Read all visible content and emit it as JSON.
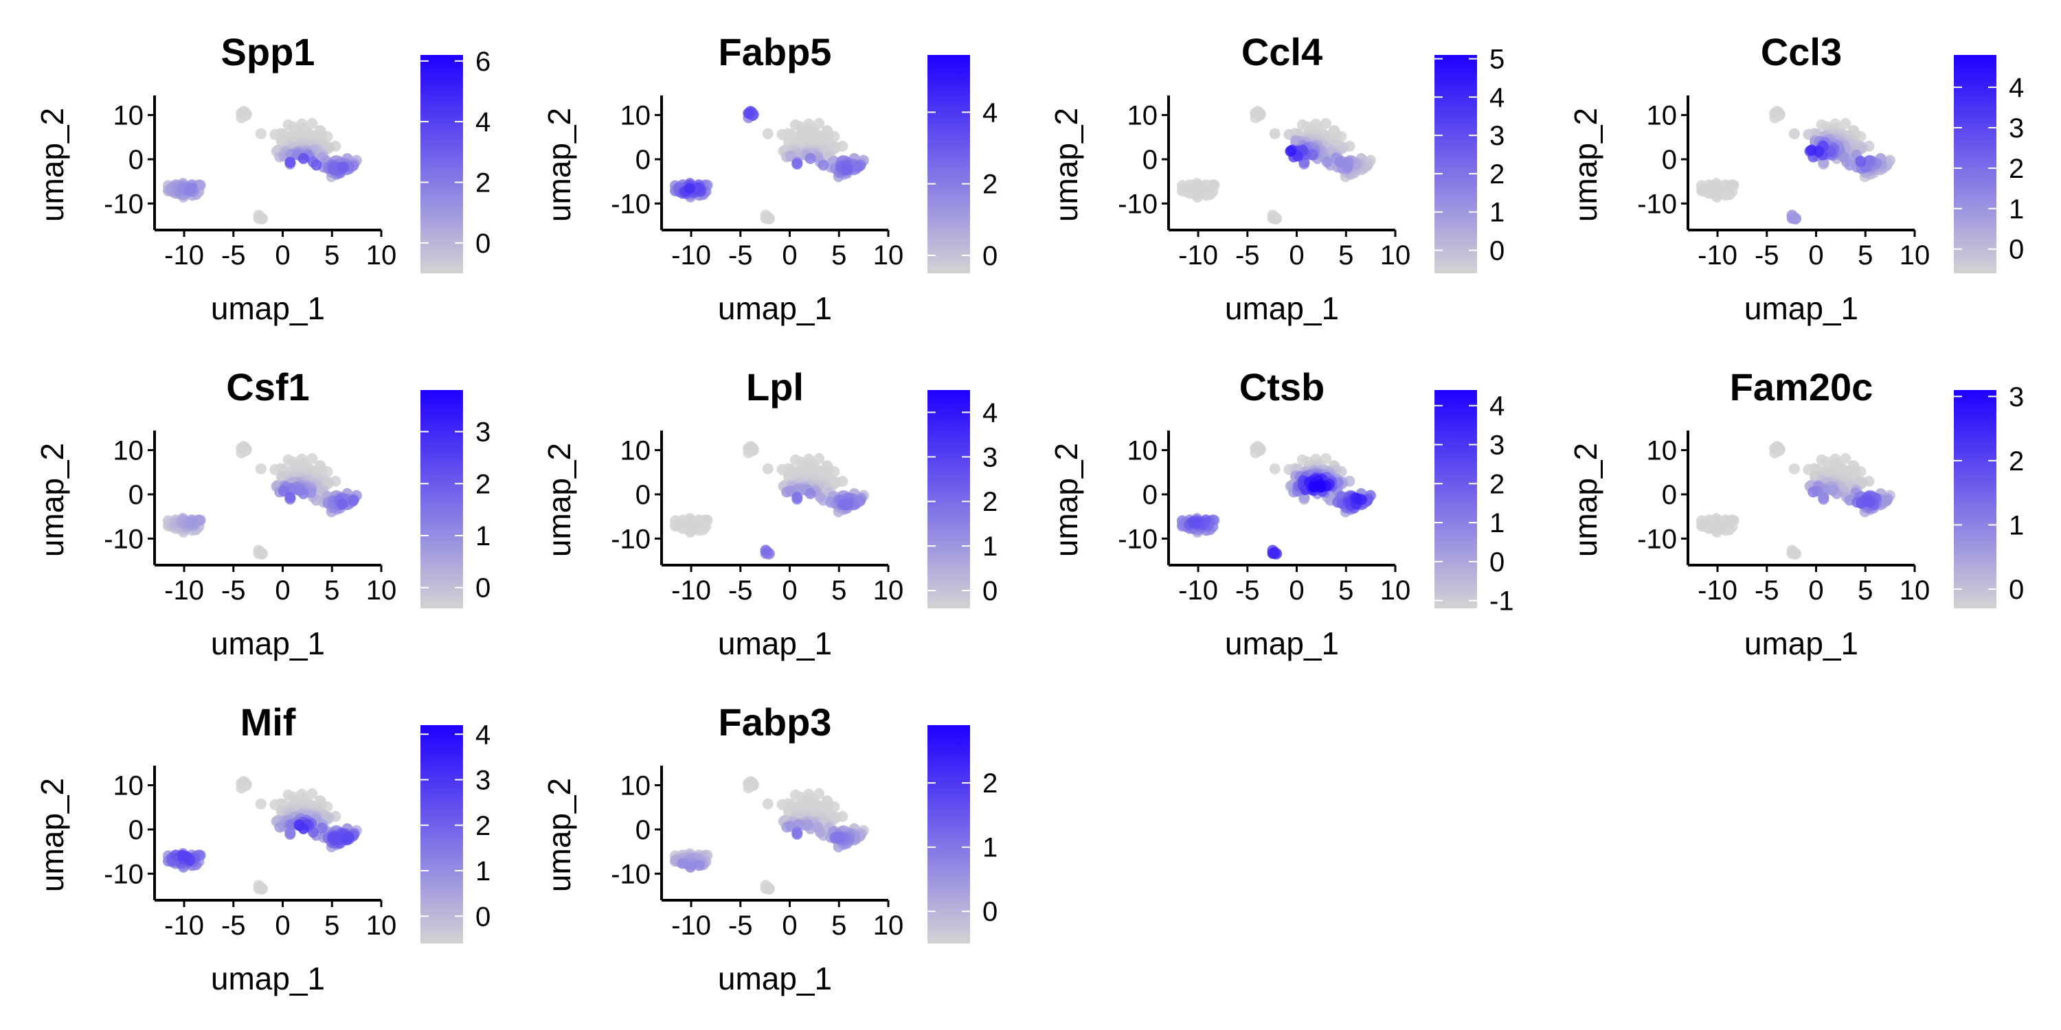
{
  "colors": {
    "low": "#d3d3d3",
    "high": "#1e00ff"
  },
  "chart_data": {
    "type": "scatter",
    "title": "",
    "xlabel": "umap_1",
    "ylabel": "umap_2",
    "xlim": [
      -13,
      10
    ],
    "ylim": [
      -16,
      13.5
    ],
    "x_ticks": [
      -10,
      -5,
      0,
      5,
      10
    ],
    "x_tick_labels": [
      "-10",
      "-5",
      "0",
      "5",
      "10"
    ],
    "y_ticks": [
      -10,
      0,
      10
    ],
    "y_tick_labels": [
      "-10",
      "0",
      "10"
    ],
    "clusters": [
      {
        "cx": -9.8,
        "cy": -6.8,
        "sx": 1.6,
        "sy": 1.2,
        "n": 60
      },
      {
        "cx": -4.0,
        "cy": 10.0,
        "sx": 0.35,
        "sy": 0.9,
        "n": 10
      },
      {
        "cx": -2.3,
        "cy": -13.2,
        "sx": 0.4,
        "sy": 0.4,
        "n": 6
      },
      {
        "cx": 2.0,
        "cy": 3.5,
        "sx": 2.2,
        "sy": 3.6,
        "n": 160
      },
      {
        "cx": 5.8,
        "cy": -1.5,
        "sx": 1.5,
        "sy": 1.3,
        "n": 55
      }
    ],
    "panels": [
      {
        "gene": "Spp1",
        "color_min": -1,
        "color_max": 6.2,
        "colorbar_ticks": [
          0,
          2,
          4,
          6
        ],
        "hot": [
          [
            2,
            -1,
            0.75
          ],
          [
            6,
            -2,
            0.5
          ],
          [
            -9.8,
            -6.8,
            0.35
          ]
        ]
      },
      {
        "gene": "Fabp5",
        "color_min": -0.5,
        "color_max": 5.6,
        "colorbar_ticks": [
          0,
          2,
          4
        ],
        "hot": [
          [
            1.5,
            -2,
            0.8
          ],
          [
            -10,
            -6.5,
            0.7
          ],
          [
            6,
            -2,
            0.5
          ],
          [
            -4,
            10.5,
            0.6
          ]
        ]
      },
      {
        "gene": "Ccl4",
        "color_min": -0.6,
        "color_max": 5.1,
        "colorbar_ticks": [
          0,
          1,
          2,
          3,
          4,
          5
        ],
        "hot": [
          [
            -0.5,
            1,
            0.95
          ],
          [
            4,
            -1,
            0.4
          ]
        ]
      },
      {
        "gene": "Ccl3",
        "color_min": -0.6,
        "color_max": 4.8,
        "colorbar_ticks": [
          0,
          1,
          2,
          3,
          4
        ],
        "hot": [
          [
            0,
            2,
            0.75
          ],
          [
            4.5,
            -0.5,
            0.5
          ],
          [
            -2,
            -13,
            0.3
          ]
        ]
      },
      {
        "gene": "Csf1",
        "color_min": -0.4,
        "color_max": 3.8,
        "colorbar_ticks": [
          0,
          1,
          2,
          3
        ],
        "hot": [
          [
            1,
            0,
            0.55
          ],
          [
            6.5,
            -2,
            0.5
          ],
          [
            -9,
            -6,
            0.25
          ]
        ]
      },
      {
        "gene": "Lpl",
        "color_min": -0.4,
        "color_max": 4.5,
        "colorbar_ticks": [
          0,
          1,
          2,
          3,
          4
        ],
        "hot": [
          [
            1,
            -1,
            0.5
          ],
          [
            6,
            -2,
            0.45
          ],
          [
            -2.5,
            -13.2,
            0.5
          ]
        ]
      },
      {
        "gene": "Ctsb",
        "color_min": -1.2,
        "color_max": 4.4,
        "colorbar_ticks": [
          -1,
          0,
          1,
          2,
          3,
          4
        ],
        "hot": [
          [
            2,
            2,
            0.95
          ],
          [
            6,
            -1.5,
            0.8
          ],
          [
            -10,
            -6.5,
            0.6
          ],
          [
            -2.3,
            -13.2,
            0.8
          ]
        ]
      },
      {
        "gene": "Fam20c",
        "color_min": -0.3,
        "color_max": 3.1,
        "colorbar_ticks": [
          0,
          1,
          2,
          3
        ],
        "hot": [
          [
            5,
            -1.5,
            0.55
          ],
          [
            0,
            0,
            0.45
          ]
        ]
      },
      {
        "gene": "Mif",
        "color_min": -0.6,
        "color_max": 4.2,
        "colorbar_ticks": [
          0,
          1,
          2,
          3,
          4
        ],
        "hot": [
          [
            2,
            0,
            0.8
          ],
          [
            6,
            -2,
            0.65
          ],
          [
            -10,
            -6.5,
            0.65
          ]
        ]
      },
      {
        "gene": "Fabp3",
        "color_min": -0.5,
        "color_max": 2.9,
        "colorbar_ticks": [
          0,
          1,
          2
        ],
        "hot": [
          [
            1,
            -1,
            0.5
          ],
          [
            -10,
            -8.5,
            0.4
          ],
          [
            5,
            -2,
            0.4
          ]
        ]
      }
    ]
  }
}
